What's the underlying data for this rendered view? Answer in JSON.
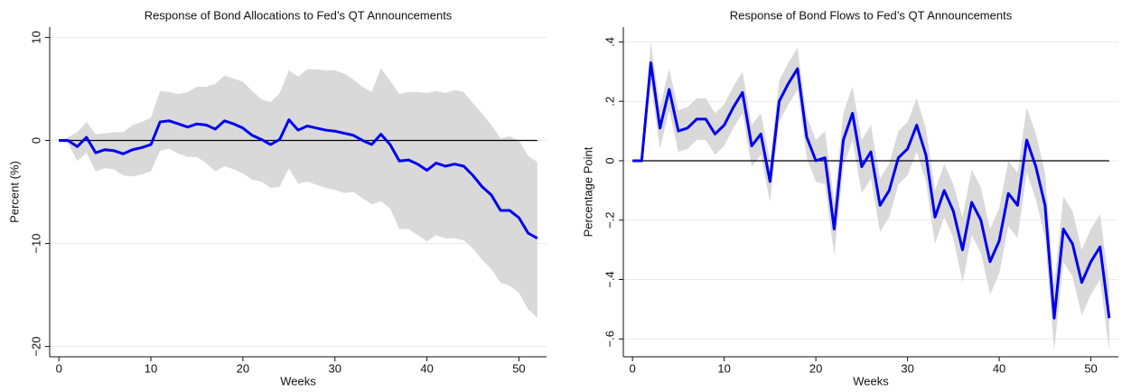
{
  "chart_data": [
    {
      "type": "line",
      "title": "Response of Bond Allocations to Fed’s QT Announcements",
      "x_label": "Weeks",
      "y_label": "Percent (%)",
      "x": [
        0,
        1,
        2,
        3,
        4,
        5,
        6,
        7,
        8,
        9,
        10,
        11,
        12,
        13,
        14,
        15,
        16,
        17,
        18,
        19,
        20,
        21,
        22,
        23,
        24,
        25,
        26,
        27,
        28,
        29,
        30,
        31,
        32,
        33,
        34,
        35,
        36,
        37,
        38,
        39,
        40,
        41,
        42,
        43,
        44,
        45,
        46,
        47,
        48,
        49,
        50,
        51,
        52
      ],
      "values": [
        0,
        0,
        -0.6,
        0.3,
        -1.2,
        -0.9,
        -1.0,
        -1.3,
        -0.9,
        -0.7,
        -0.4,
        1.8,
        1.9,
        1.6,
        1.3,
        1.6,
        1.5,
        1.1,
        1.9,
        1.6,
        1.2,
        0.5,
        0.1,
        -0.4,
        0.1,
        2.0,
        1.0,
        1.4,
        1.2,
        1.0,
        0.9,
        0.7,
        0.5,
        0,
        -0.4,
        0.6,
        -0.4,
        -2.0,
        -1.9,
        -2.3,
        -2.9,
        -2.2,
        -2.5,
        -2.3,
        -2.5,
        -3.4,
        -4.5,
        -5.3,
        -6.8,
        -6.8,
        -7.5,
        -9.0,
        -9.5
      ],
      "upper": [
        0,
        0.3,
        0.8,
        1.8,
        0.6,
        0.7,
        0.8,
        0.8,
        1.5,
        1.8,
        2.2,
        4.8,
        4.7,
        4.5,
        4.7,
        5.2,
        5.2,
        5.5,
        6.3,
        6.0,
        5.7,
        4.8,
        4.0,
        3.7,
        4.6,
        6.8,
        6.2,
        6.9,
        6.9,
        6.8,
        6.8,
        6.5,
        5.9,
        5.2,
        4.7,
        7.0,
        5.8,
        4.5,
        4.7,
        4.7,
        4.6,
        4.8,
        4.6,
        4.9,
        4.7,
        3.6,
        2.6,
        1.5,
        0.2,
        0.4,
        0,
        -1.5,
        -2.1
      ],
      "lower": [
        0,
        -0.3,
        -2.0,
        -1.2,
        -3.0,
        -2.7,
        -2.8,
        -3.4,
        -3.5,
        -3.3,
        -3.0,
        -1.0,
        -0.8,
        -1.3,
        -1.6,
        -1.6,
        -2.2,
        -3.0,
        -2.5,
        -2.8,
        -3.2,
        -3.8,
        -4.0,
        -4.6,
        -4.5,
        -2.7,
        -4.2,
        -4.0,
        -4.3,
        -4.6,
        -4.8,
        -5.1,
        -5.0,
        -5.6,
        -6.2,
        -5.9,
        -6.6,
        -8.6,
        -8.6,
        -9.2,
        -9.8,
        -9.2,
        -9.5,
        -9.5,
        -9.7,
        -10.5,
        -11.6,
        -12.5,
        -13.8,
        -14.1,
        -14.8,
        -16.4,
        -17.2
      ],
      "color": "#0000ee",
      "band_color": "#d9d9d9",
      "xlim": [
        -1,
        53
      ],
      "xticks": [
        0,
        10,
        20,
        30,
        40,
        50
      ],
      "ylim": [
        -21,
        11
      ],
      "yticks": [
        {
          "value": -20,
          "label": "−20"
        },
        {
          "value": -10,
          "label": "−10"
        },
        0,
        10
      ],
      "hline": 0,
      "grid": true
    },
    {
      "type": "line",
      "title": "Response of Bond Flows to Fed’s QT Announcements",
      "x_label": "Weeks",
      "y_label": "Percentage Point",
      "x": [
        0,
        1,
        2,
        3,
        4,
        5,
        6,
        7,
        8,
        9,
        10,
        11,
        12,
        13,
        14,
        15,
        16,
        17,
        18,
        19,
        20,
        21,
        22,
        23,
        24,
        25,
        26,
        27,
        28,
        29,
        30,
        31,
        32,
        33,
        34,
        35,
        36,
        37,
        38,
        39,
        40,
        41,
        42,
        43,
        44,
        45,
        46,
        47,
        48,
        49,
        50,
        51,
        52
      ],
      "values": [
        0,
        0,
        0.33,
        0.11,
        0.24,
        0.1,
        0.11,
        0.14,
        0.14,
        0.09,
        0.12,
        0.18,
        0.23,
        0.05,
        0.09,
        -0.07,
        0.2,
        0.26,
        0.31,
        0.08,
        0,
        0.01,
        -0.23,
        0.07,
        0.16,
        -0.02,
        0.03,
        -0.15,
        -0.1,
        0.01,
        0.04,
        0.12,
        0.02,
        -0.19,
        -0.1,
        -0.17,
        -0.3,
        -0.14,
        -0.2,
        -0.34,
        -0.27,
        -0.11,
        -0.15,
        0.07,
        -0.02,
        -0.15,
        -0.53,
        -0.23,
        -0.28,
        -0.41,
        -0.34,
        -0.29,
        -0.53
      ],
      "upper": [
        0,
        0,
        0.4,
        0.18,
        0.31,
        0.17,
        0.18,
        0.21,
        0.21,
        0.16,
        0.19,
        0.25,
        0.3,
        0.12,
        0.16,
        0,
        0.27,
        0.33,
        0.38,
        0.15,
        0.07,
        0.1,
        -0.14,
        0.16,
        0.25,
        0.07,
        0.12,
        -0.06,
        -0.01,
        0.1,
        0.13,
        0.21,
        0.11,
        -0.1,
        -0.01,
        -0.08,
        -0.19,
        -0.03,
        -0.09,
        -0.23,
        -0.16,
        0,
        -0.04,
        0.18,
        0.09,
        -0.04,
        -0.42,
        -0.12,
        -0.17,
        -0.3,
        -0.23,
        -0.18,
        -0.42
      ],
      "lower": [
        0,
        0,
        0.26,
        0.04,
        0.17,
        0.03,
        0.04,
        0.07,
        0.07,
        0.02,
        0.05,
        0.11,
        0.16,
        -0.02,
        0.02,
        -0.14,
        0.13,
        0.19,
        0.24,
        0.01,
        -0.07,
        -0.08,
        -0.32,
        -0.02,
        0.07,
        -0.11,
        -0.06,
        -0.24,
        -0.19,
        -0.08,
        -0.05,
        0.03,
        -0.07,
        -0.28,
        -0.19,
        -0.26,
        -0.41,
        -0.25,
        -0.31,
        -0.45,
        -0.38,
        -0.22,
        -0.26,
        -0.04,
        -0.13,
        -0.26,
        -0.64,
        -0.34,
        -0.39,
        -0.52,
        -0.45,
        -0.4,
        -0.64
      ],
      "color": "#0000ee",
      "band_color": "#d9d9d9",
      "xlim": [
        -1,
        53
      ],
      "xticks": [
        0,
        10,
        20,
        30,
        40,
        50
      ],
      "ylim": [
        -0.66,
        0.45
      ],
      "yticks": [
        {
          "value": -0.6,
          "label": "−.6"
        },
        {
          "value": -0.4,
          "label": "−.4"
        },
        {
          "value": -0.2,
          "label": "−.2"
        },
        0,
        {
          "value": 0.2,
          "label": ".2"
        },
        {
          "value": 0.4,
          "label": ".4"
        }
      ],
      "hline": 0,
      "grid": true
    }
  ]
}
